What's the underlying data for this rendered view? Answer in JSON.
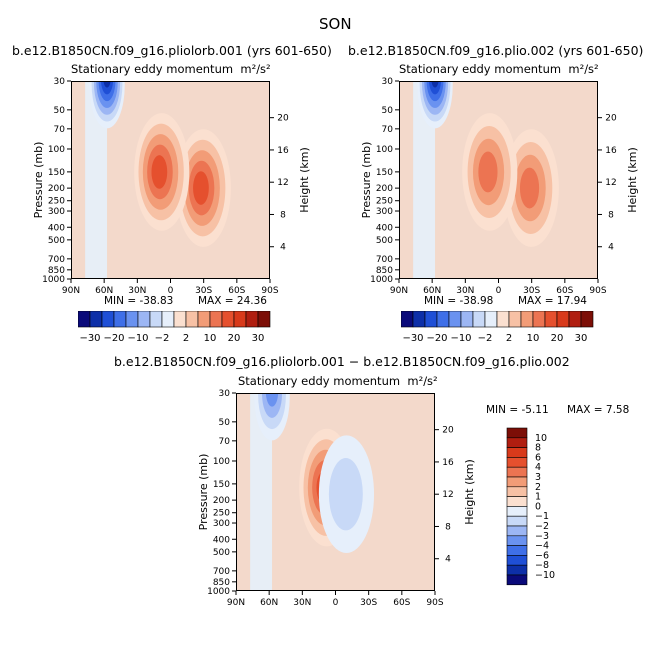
{
  "figure_title": "SON",
  "chart_data": [
    {
      "type": "heatmap",
      "title": "b.e12.B1850CN.f09_g16.pliolorb.001 (yrs 601-650)",
      "subtitle": "Stationary eddy momentum",
      "units": "m²/s²",
      "xlabel": "",
      "ylabel": "Pressure (mb)",
      "ylabel_right": "Height (km)",
      "xticks": [
        "90N",
        "60N",
        "30N",
        "0",
        "30S",
        "60S",
        "90S"
      ],
      "yticks": [
        30,
        50,
        70,
        100,
        150,
        200,
        250,
        300,
        400,
        500,
        700,
        850,
        1000
      ],
      "yticks_right": [
        20,
        16,
        12,
        8,
        4
      ],
      "min_label": "MIN = -38.83",
      "max_label": "MAX = 24.36",
      "min": -38.83,
      "max": 24.36,
      "features": [
        {
          "lat": -30,
          "p": 200,
          "value": 24,
          "sign": "positive"
        },
        {
          "lat": 8,
          "p": 150,
          "value": 22,
          "sign": "positive"
        },
        {
          "lat": 58,
          "p": 35,
          "value": -38,
          "sign": "negative"
        }
      ]
    },
    {
      "type": "heatmap",
      "title": "b.e12.B1850CN.f09_g16.plio.002 (yrs 601-650)",
      "subtitle": "Stationary eddy momentum",
      "units": "m²/s²",
      "xlabel": "",
      "ylabel": "Pressure (mb)",
      "ylabel_right": "Height (km)",
      "xticks": [
        "90N",
        "60N",
        "30N",
        "0",
        "30S",
        "60S",
        "90S"
      ],
      "yticks": [
        30,
        50,
        70,
        100,
        150,
        200,
        250,
        300,
        400,
        500,
        700,
        850,
        1000
      ],
      "yticks_right": [
        20,
        16,
        12,
        8,
        4
      ],
      "min_label": "MIN = -38.98",
      "max_label": "MAX = 17.94",
      "min": -38.98,
      "max": 17.94,
      "features": [
        {
          "lat": -30,
          "p": 200,
          "value": 18,
          "sign": "positive"
        },
        {
          "lat": 8,
          "p": 150,
          "value": 15,
          "sign": "positive"
        },
        {
          "lat": 58,
          "p": 35,
          "value": -38,
          "sign": "negative"
        }
      ]
    },
    {
      "type": "heatmap",
      "title": "b.e12.B1850CN.f09_g16.pliolorb.001 − b.e12.B1850CN.f09_g16.plio.002",
      "subtitle": "Stationary eddy momentum",
      "units": "m²/s²",
      "xlabel": "",
      "ylabel": "Pressure (mb)",
      "ylabel_right": "Height (km)",
      "xticks": [
        "90N",
        "60N",
        "30N",
        "0",
        "30S",
        "60S",
        "90S"
      ],
      "yticks": [
        30,
        50,
        70,
        100,
        150,
        200,
        250,
        300,
        400,
        500,
        700,
        850,
        1000
      ],
      "yticks_right": [
        20,
        16,
        12,
        8,
        4
      ],
      "min_label": "MIN = -5.11",
      "max_label": "MAX = 7.58",
      "min": -5.11,
      "max": 7.58,
      "features": [
        {
          "lat": 8,
          "p": 160,
          "value": 7.5,
          "sign": "positive"
        },
        {
          "lat": 58,
          "p": 35,
          "value": -5,
          "sign": "negative"
        },
        {
          "lat": -10,
          "p": 180,
          "value": -2,
          "sign": "negative"
        }
      ]
    }
  ],
  "colorbar_top": {
    "labels": [
      "−30",
      "−20",
      "−10",
      "−2",
      "2",
      "10",
      "20",
      "30"
    ],
    "colors": [
      "#0a0a7a",
      "#0d2fa8",
      "#1f4fd6",
      "#3f6fe8",
      "#6a92f0",
      "#9cb6f4",
      "#c8d9f7",
      "#e6effb",
      "#fbe0d0",
      "#f7c1a5",
      "#f29c77",
      "#ec7452",
      "#e5502e",
      "#d83a1b",
      "#b01e10",
      "#7c0e07"
    ]
  },
  "colorbar_diff": {
    "labels": [
      "10",
      "8",
      "6",
      "4",
      "3",
      "2",
      "1",
      "0",
      "−1",
      "−2",
      "−3",
      "−4",
      "−6",
      "−8",
      "−10"
    ],
    "colors": [
      "#7c0e07",
      "#b01e10",
      "#d83a1b",
      "#e5502e",
      "#ec7452",
      "#f29c77",
      "#f7c1a5",
      "#fbe0d0",
      "#e6effb",
      "#c8d9f7",
      "#9cb6f4",
      "#6a92f0",
      "#3f6fe8",
      "#1f4fd6",
      "#0d2fa8",
      "#0a0a7a"
    ]
  }
}
